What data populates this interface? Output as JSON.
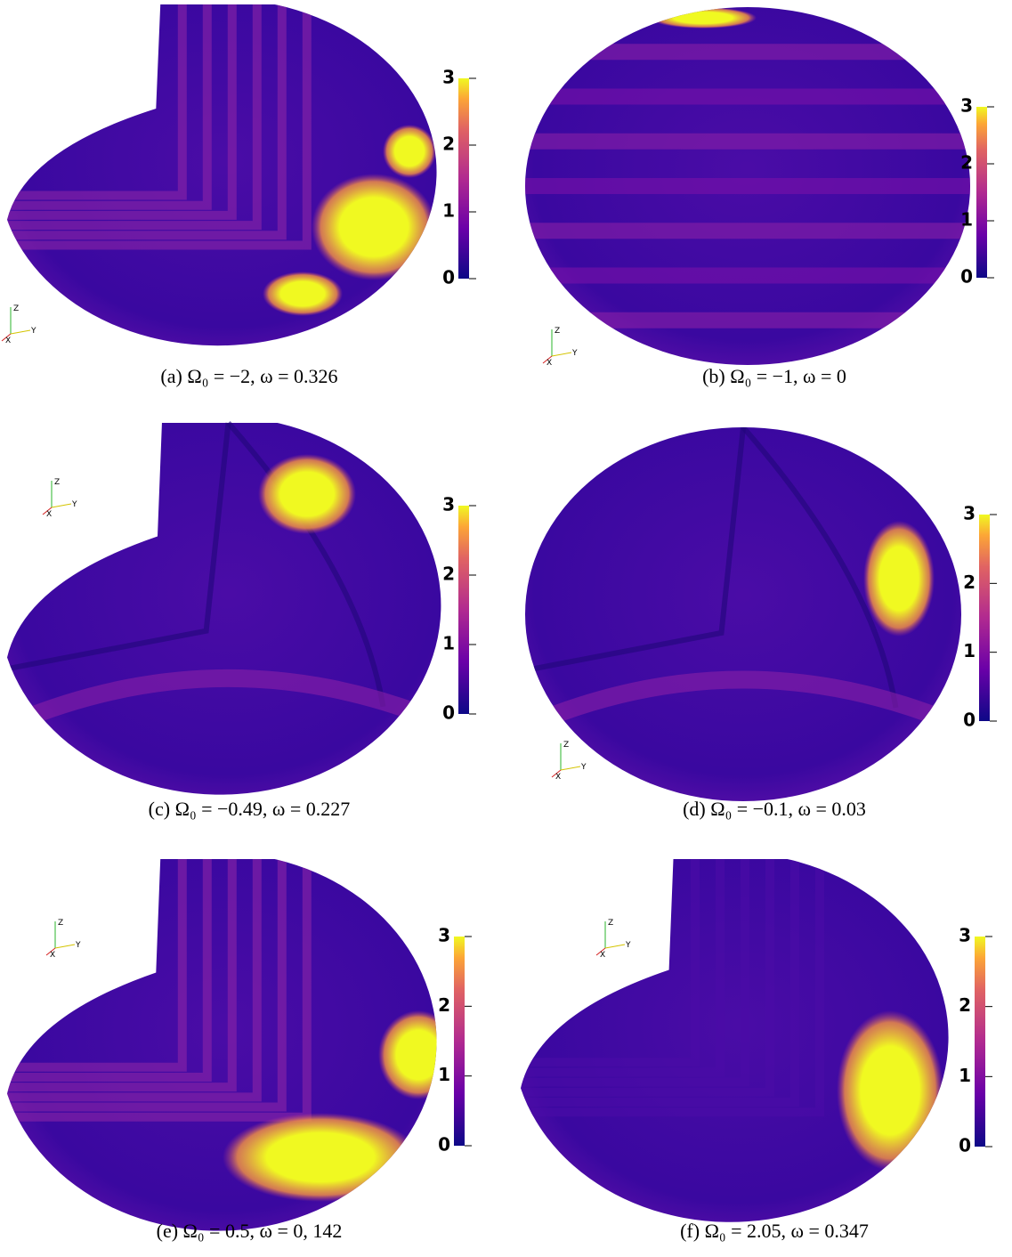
{
  "axis_triad": {
    "z": "Z",
    "y": "Y",
    "x": "X"
  },
  "panels": [
    {
      "caption": "(a) Ω₀ = −2, ω = 0.326",
      "colorbar": {
        "ticks": [
          0,
          1,
          2,
          3
        ]
      }
    },
    {
      "caption": "(b) Ω₀ = −1, ω = 0",
      "colorbar": {
        "ticks": [
          0,
          1,
          2,
          3
        ]
      }
    },
    {
      "caption": "(c) Ω₀ = −0.49, ω = 0.227",
      "colorbar": {
        "ticks": [
          0,
          1,
          2,
          3
        ]
      }
    },
    {
      "caption": "(d) Ω₀ = −0.1, ω = 0.03",
      "colorbar": {
        "ticks": [
          0,
          1,
          2,
          3
        ]
      }
    },
    {
      "caption": "(e) Ω₀ = 0.5, ω = 0, 142",
      "colorbar": {
        "ticks": [
          0,
          1,
          2,
          3
        ]
      }
    },
    {
      "caption": "(f) Ω₀ = 2.05, ω = 0.347",
      "colorbar": {
        "ticks": [
          0,
          1,
          2,
          3
        ]
      }
    }
  ]
}
